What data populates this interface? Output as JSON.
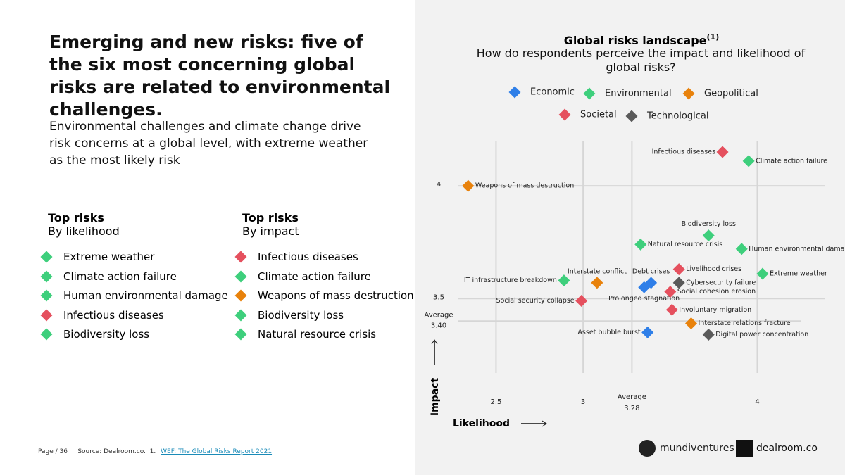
{
  "header": {
    "title": "Emerging and new risks: five of the six most concerning global risks are related to environmental challenges.",
    "subtitle": "Environmental challenges and climate change drive risk concerns at a global level, with extreme weather as the most likely risk"
  },
  "lists": [
    {
      "title": "Top risks",
      "subtitle": "By likelihood",
      "items": [
        {
          "text": "Extreme weather",
          "color": "#3ecf7c"
        },
        {
          "text": "Climate action failure",
          "color": "#3ecf7c"
        },
        {
          "text": "Human environmental damage",
          "color": "#3ecf7c"
        },
        {
          "text": "Infectious diseases",
          "color": "#e5505e"
        },
        {
          "text": "Biodiversity loss",
          "color": "#3ecf7c"
        }
      ]
    },
    {
      "title": "Top risks",
      "subtitle": "By impact",
      "items": [
        {
          "text": "Infectious diseases",
          "color": "#e5505e"
        },
        {
          "text": "Climate action failure",
          "color": "#3ecf7c"
        },
        {
          "text": "Weapons of mass destruction",
          "color": "#e8820c"
        },
        {
          "text": "Biodiversity loss",
          "color": "#3ecf7c"
        },
        {
          "text": "Natural resource crisis",
          "color": "#3ecf7c"
        }
      ]
    }
  ],
  "chart_data": {
    "type": "scatter",
    "title": "Global risks landscape",
    "title_note": "(1)",
    "subtitle": "How do respondents perceive the impact and likelihood of global risks?",
    "x_label": "Likelihood",
    "y_label": "Impact",
    "xlim": [
      2.28,
      4.39
    ],
    "ylim": [
      3.17,
      4.2
    ],
    "xticks": [
      2.5,
      3,
      4
    ],
    "yticks": [
      3.5,
      4
    ],
    "x_average": {
      "label": "Average",
      "value": 3.28
    },
    "y_average": {
      "label": "Average",
      "value": 3.4,
      "value_label": "3.40"
    },
    "grid": true,
    "series": [
      {
        "name": "Economic",
        "color": "#2f7fe8",
        "labels": [
          "Debt crises",
          "Prolonged stagnation",
          "Asset bubble burst"
        ],
        "x": [
          3.39,
          3.35,
          3.37
        ],
        "values": [
          3.57,
          3.55,
          3.35
        ]
      },
      {
        "name": "Environmental",
        "color": "#3ecf7c",
        "labels": [
          "Climate action failure",
          "Biodiversity loss",
          "Natural resource crisis",
          "Human environmental damage",
          "Extreme weather",
          "IT infrastructure breakdown"
        ],
        "x": [
          3.95,
          3.72,
          3.33,
          3.91,
          4.03,
          2.89
        ],
        "values": [
          4.11,
          3.78,
          3.74,
          3.72,
          3.61,
          3.58
        ]
      },
      {
        "name": "Geopolitical",
        "color": "#e8820c",
        "labels": [
          "Weapons of mass destruction",
          "Interstate conflict",
          "Interstate relations fracture"
        ],
        "x": [
          2.34,
          3.08,
          3.62
        ],
        "values": [
          4.0,
          3.57,
          3.39
        ]
      },
      {
        "name": "Societal",
        "color": "#e5505e",
        "labels": [
          "Infectious diseases",
          "Livelihood crises",
          "Social cohesion erosion",
          "Social security collapse",
          "Involuntary migration"
        ],
        "x": [
          3.8,
          3.55,
          3.5,
          2.99,
          3.51
        ],
        "values": [
          4.15,
          3.63,
          3.53,
          3.49,
          3.45
        ]
      },
      {
        "name": "Technological",
        "color": "#5a5a5a",
        "labels": [
          "Cybersecurity failure",
          "Digital power concentration"
        ],
        "x": [
          3.55,
          3.72
        ],
        "values": [
          3.57,
          3.34
        ]
      }
    ]
  },
  "footer": {
    "page": "Page / 36",
    "source": "Source: Dealroom.co.",
    "note_number": "1.",
    "note_link": "WEF: The Global Risks Report 2021"
  },
  "logos": [
    "mundiventures",
    "dealroom.co"
  ]
}
